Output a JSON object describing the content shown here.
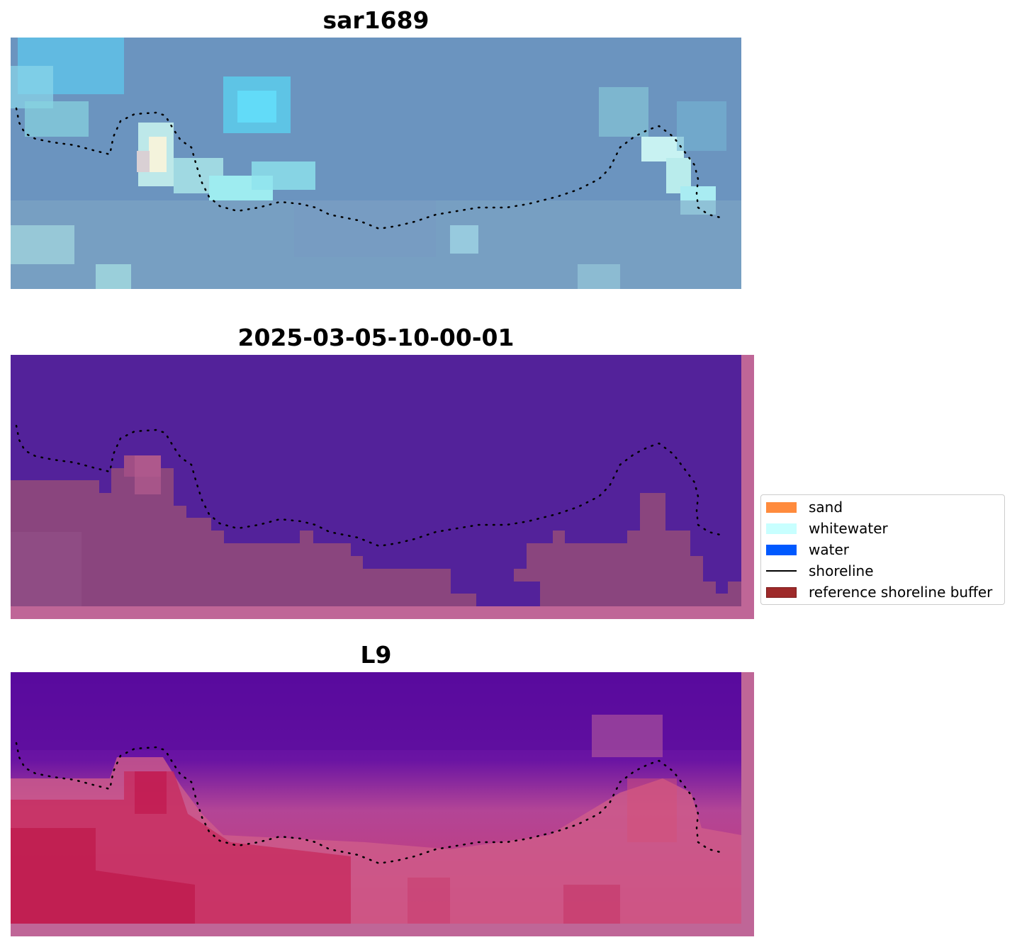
{
  "panels": [
    {
      "title": "sar1689"
    },
    {
      "title": "2025-03-05-10-00-01"
    },
    {
      "title": "L9"
    }
  ],
  "legend": {
    "items": [
      {
        "label": "sand",
        "color": "#ff8b3d",
        "kind": "patch"
      },
      {
        "label": "whitewater",
        "color": "#c8ffff",
        "kind": "patch"
      },
      {
        "label": "water",
        "color": "#0059ff",
        "kind": "patch"
      },
      {
        "label": "shoreline",
        "color": "#000000",
        "kind": "line"
      },
      {
        "label": "reference shoreline buffer",
        "color": "#9e2a2a",
        "kind": "patch"
      }
    ]
  },
  "colors": {
    "water_class": "#53229a",
    "buffer_overlay": "#bf6697",
    "land_class": "#8a457e"
  }
}
